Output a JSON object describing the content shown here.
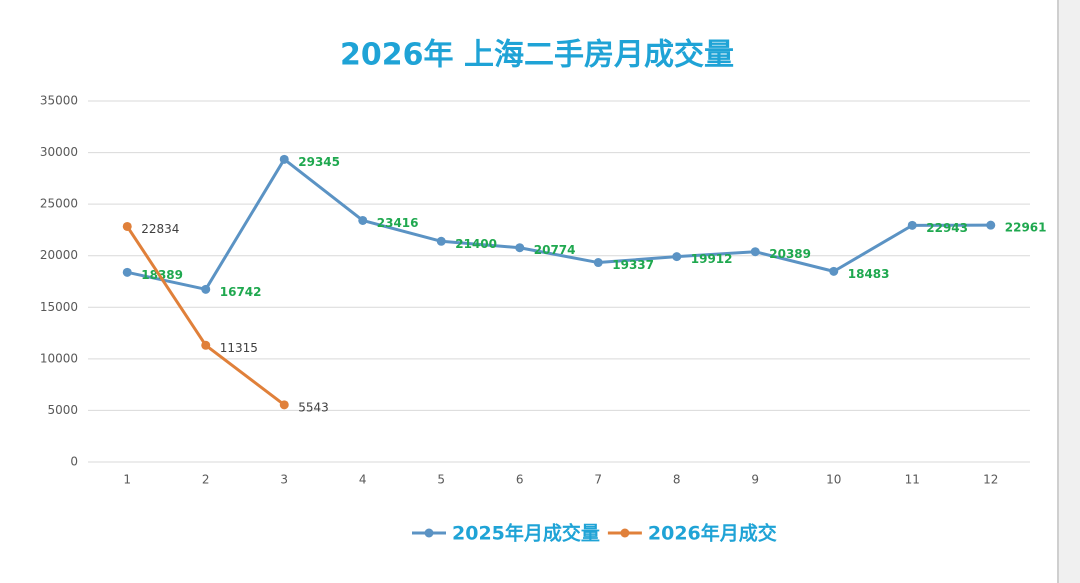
{
  "chart_data": {
    "type": "line",
    "title": "2026年 上海二手房月成交量",
    "categories": [
      "1",
      "2",
      "3",
      "4",
      "5",
      "6",
      "7",
      "8",
      "9",
      "10",
      "11",
      "12"
    ],
    "series": [
      {
        "name": "2025年月成交量",
        "color": "#5b93c4",
        "label_color": "#1fa84f",
        "values": [
          18389,
          16742,
          29345,
          23416,
          21400,
          20774,
          19337,
          19912,
          20389,
          18483,
          22943,
          22961
        ]
      },
      {
        "name": "2026年月成交",
        "color": "#e0803a",
        "label_color": "#404040",
        "values": [
          22834,
          11315,
          5543,
          null,
          null,
          null,
          null,
          null,
          null,
          null,
          null,
          null
        ]
      }
    ],
    "ylim": [
      0,
      35000
    ],
    "yticks": [
      0,
      5000,
      10000,
      15000,
      20000,
      25000,
      30000,
      35000
    ],
    "grid": true,
    "legend": "bottom"
  }
}
